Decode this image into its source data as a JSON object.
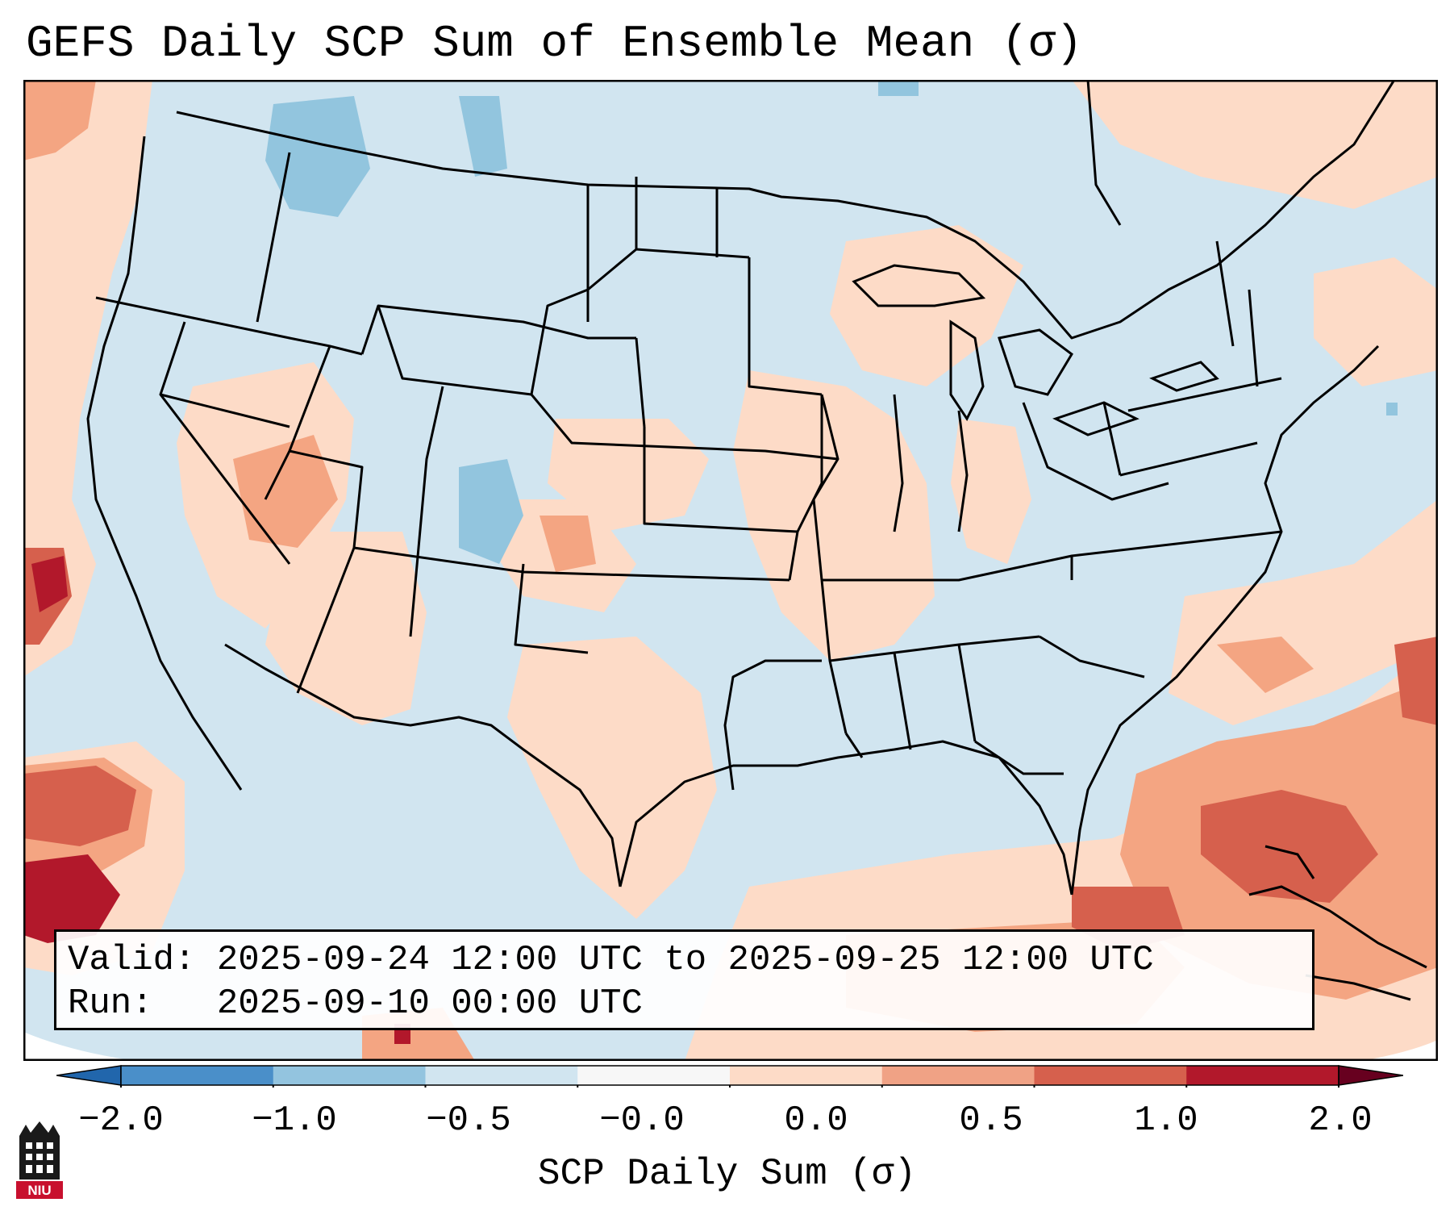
{
  "title": "GEFS Daily SCP Sum of Ensemble Mean (σ)",
  "info": {
    "valid_line": "Valid: 2025-09-24 12:00 UTC to 2025-09-25 12:00 UTC",
    "run_line": "Run:   2025-09-10 00:00 UTC"
  },
  "colorbar": {
    "label": "SCP Daily Sum (σ)",
    "ticks": [
      "−2.0",
      "−1.0",
      "−0.5",
      "−0.0",
      "0.0",
      "0.5",
      "1.0",
      "2.0"
    ],
    "colors": [
      "#4a8fc9",
      "#93c4df",
      "#d1e5f0",
      "#f7f7f7",
      "#fddbc7",
      "#f0a285",
      "#d6604d",
      "#b2182b"
    ]
  },
  "logo": {
    "text": "NIU"
  },
  "map_colors": {
    "ocean_neutral": "#d1e5f0",
    "light_positive": "#fddbc7",
    "medium_positive": "#f4a582",
    "strong_positive": "#d6604d",
    "very_strong_positive": "#b2182b",
    "light_negative": "#92c5de"
  }
}
